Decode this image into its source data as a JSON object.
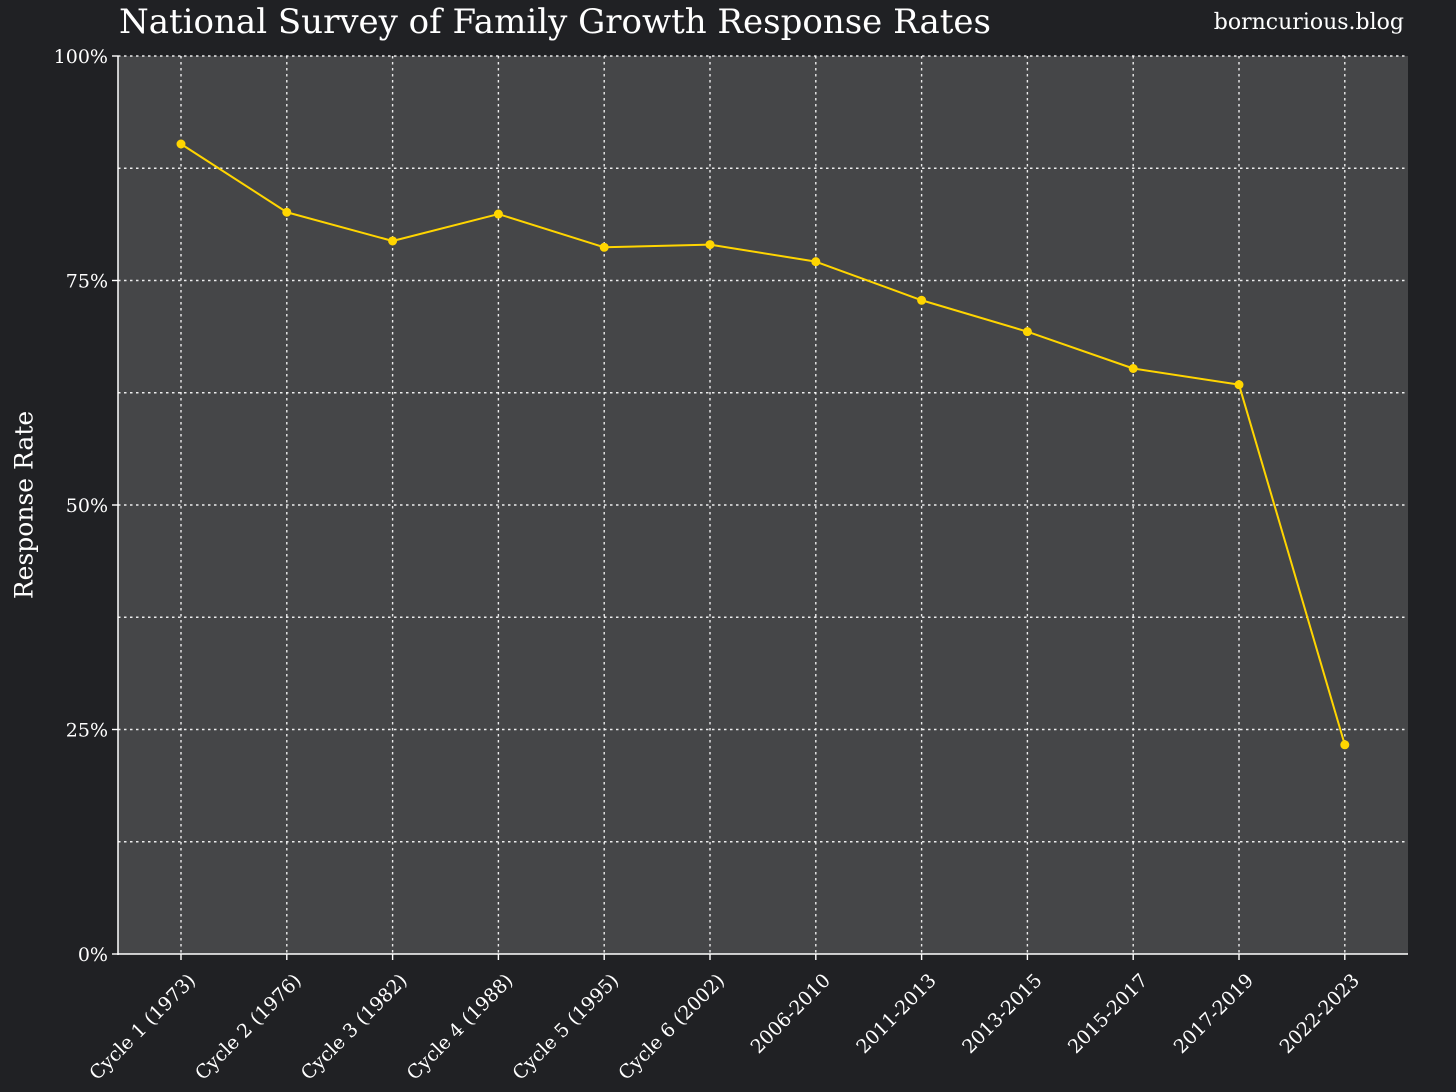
{
  "header": {
    "title": "National Survey of Family Growth Response Rates",
    "watermark": "borncurious.blog"
  },
  "colors": {
    "background": "#202124",
    "plot_background": "#454648",
    "line": "#ffd500",
    "grid": "#ffffff",
    "text": "#ffffff"
  },
  "chart_data": {
    "type": "line",
    "title": "National Survey of Family Growth Response Rates",
    "xlabel": "",
    "ylabel": "Response Rate",
    "ylim": [
      0,
      100
    ],
    "y_ticks": [
      0,
      25,
      50,
      75,
      100
    ],
    "y_tick_labels": [
      "0%",
      "25%",
      "50%",
      "75%",
      "100%"
    ],
    "y_minor_grid": [
      12.5,
      37.5,
      62.5,
      87.5
    ],
    "grid": true,
    "categories": [
      "Cycle 1 (1973)",
      "Cycle 2 (1976)",
      "Cycle 3 (1982)",
      "Cycle 4 (1988)",
      "Cycle 5 (1995)",
      "Cycle 6 (2002)",
      "2006-2010",
      "2011-2013",
      "2013-2015",
      "2015-2017",
      "2017-2019",
      "2022-2023"
    ],
    "series": [
      {
        "values": [
          90.2,
          82.6,
          79.4,
          82.4,
          78.7,
          79.0,
          77.1,
          72.8,
          69.3,
          65.2,
          63.4,
          23.3
        ]
      }
    ]
  }
}
